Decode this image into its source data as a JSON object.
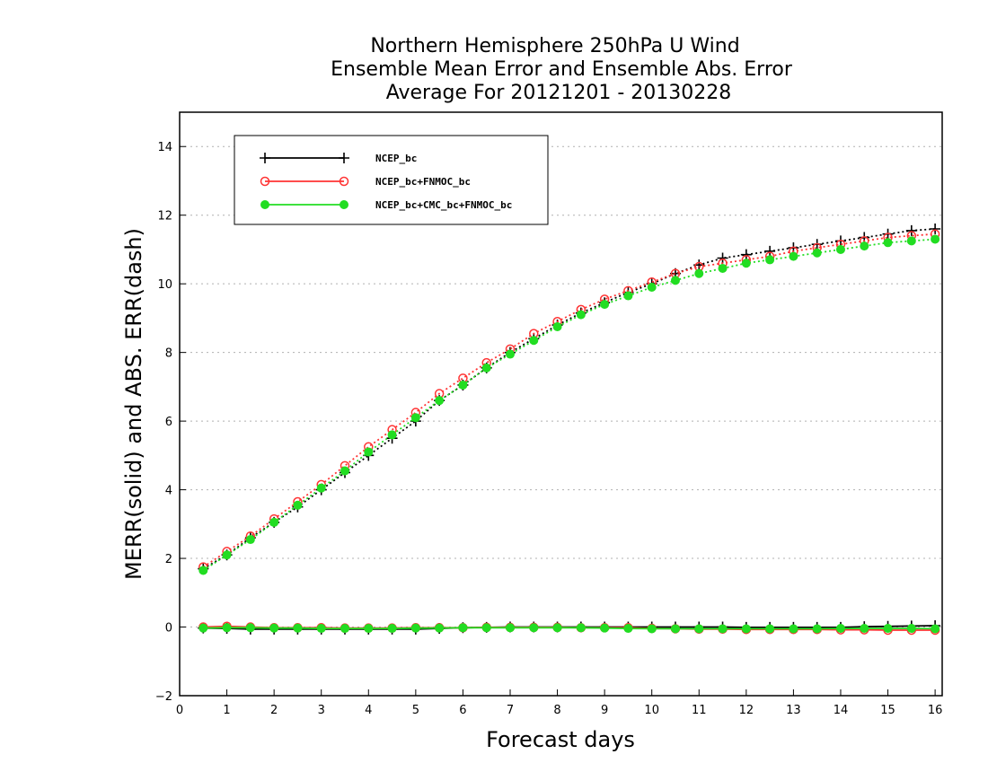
{
  "chart_data": {
    "type": "line",
    "title": [
      "Northern Hemisphere 250hPa U Wind",
      "Ensemble Mean Error and Ensemble Abs. Error",
      "Average For 20121201 - 20130228"
    ],
    "xlabel": "Forecast days",
    "ylabel": "MERR(solid) and ABS. ERR(dash)",
    "xlim": [
      0,
      16.15
    ],
    "ylim": [
      -2,
      15
    ],
    "xticks": [
      "0",
      "1",
      "2",
      "3",
      "4",
      "5",
      "6",
      "7",
      "8",
      "9",
      "10",
      "11",
      "12",
      "13",
      "14",
      "15",
      "16"
    ],
    "yticks": [
      "−2",
      "0",
      "2",
      "4",
      "6",
      "8",
      "10",
      "12",
      "14"
    ],
    "grid": "horizontal dotted",
    "legend_position": "top-left",
    "x": [
      0.5,
      1,
      1.5,
      2,
      2.5,
      3,
      3.5,
      4,
      4.5,
      5,
      5.5,
      6,
      6.5,
      7,
      7.5,
      8,
      8.5,
      9,
      9.5,
      10,
      10.5,
      11,
      11.5,
      12,
      12.5,
      13,
      13.5,
      14,
      14.5,
      15,
      15.5,
      16
    ],
    "series": [
      {
        "name": "NCEP_bc",
        "color": "#000000",
        "marker": "plus",
        "abs_err": [
          1.7,
          2.1,
          2.6,
          3.05,
          3.5,
          4.0,
          4.5,
          5.0,
          5.5,
          6.0,
          6.6,
          7.05,
          7.55,
          8.0,
          8.4,
          8.8,
          9.15,
          9.45,
          9.75,
          10.0,
          10.3,
          10.55,
          10.75,
          10.85,
          10.95,
          11.05,
          11.15,
          11.25,
          11.35,
          11.45,
          11.55,
          11.6
        ],
        "mean_err": [
          -0.03,
          -0.04,
          -0.06,
          -0.06,
          -0.06,
          -0.06,
          -0.06,
          -0.06,
          -0.06,
          -0.06,
          -0.04,
          -0.02,
          -0.01,
          0.0,
          0.0,
          0.0,
          0.0,
          0.0,
          0.0,
          0.0,
          0.0,
          0.0,
          0.0,
          -0.01,
          -0.01,
          -0.01,
          -0.01,
          -0.01,
          0.01,
          0.02,
          0.03,
          0.04
        ]
      },
      {
        "name": "NCEP_bc+FNMOC_bc",
        "color": "#ff3333",
        "marker": "open-circle",
        "abs_err": [
          1.75,
          2.2,
          2.65,
          3.15,
          3.65,
          4.15,
          4.7,
          5.25,
          5.75,
          6.25,
          6.8,
          7.25,
          7.7,
          8.1,
          8.55,
          8.9,
          9.25,
          9.55,
          9.8,
          10.05,
          10.3,
          10.5,
          10.6,
          10.7,
          10.8,
          10.95,
          11.05,
          11.15,
          11.25,
          11.35,
          11.4,
          11.45
        ],
        "mean_err": [
          0.0,
          0.02,
          0.0,
          -0.02,
          -0.02,
          -0.02,
          -0.03,
          -0.03,
          -0.03,
          -0.02,
          -0.02,
          -0.02,
          -0.01,
          -0.01,
          -0.01,
          -0.01,
          -0.02,
          -0.02,
          -0.02,
          -0.04,
          -0.05,
          -0.06,
          -0.06,
          -0.07,
          -0.07,
          -0.07,
          -0.07,
          -0.08,
          -0.08,
          -0.09,
          -0.09,
          -0.09
        ]
      },
      {
        "name": "NCEP_bc+CMC_bc+FNMOC_bc",
        "color": "#22dd22",
        "marker": "filled-circle",
        "abs_err": [
          1.65,
          2.1,
          2.55,
          3.05,
          3.55,
          4.05,
          4.55,
          5.1,
          5.6,
          6.1,
          6.6,
          7.05,
          7.55,
          7.95,
          8.35,
          8.75,
          9.1,
          9.4,
          9.65,
          9.9,
          10.1,
          10.3,
          10.45,
          10.6,
          10.7,
          10.8,
          10.9,
          11.0,
          11.1,
          11.2,
          11.25,
          11.3
        ],
        "mean_err": [
          -0.03,
          -0.02,
          -0.02,
          -0.03,
          -0.03,
          -0.04,
          -0.04,
          -0.04,
          -0.04,
          -0.03,
          -0.03,
          -0.02,
          -0.02,
          -0.02,
          -0.02,
          -0.02,
          -0.02,
          -0.03,
          -0.04,
          -0.05,
          -0.05,
          -0.05,
          -0.05,
          -0.05,
          -0.05,
          -0.05,
          -0.05,
          -0.04,
          -0.04,
          -0.04,
          -0.04,
          -0.05
        ]
      }
    ]
  }
}
